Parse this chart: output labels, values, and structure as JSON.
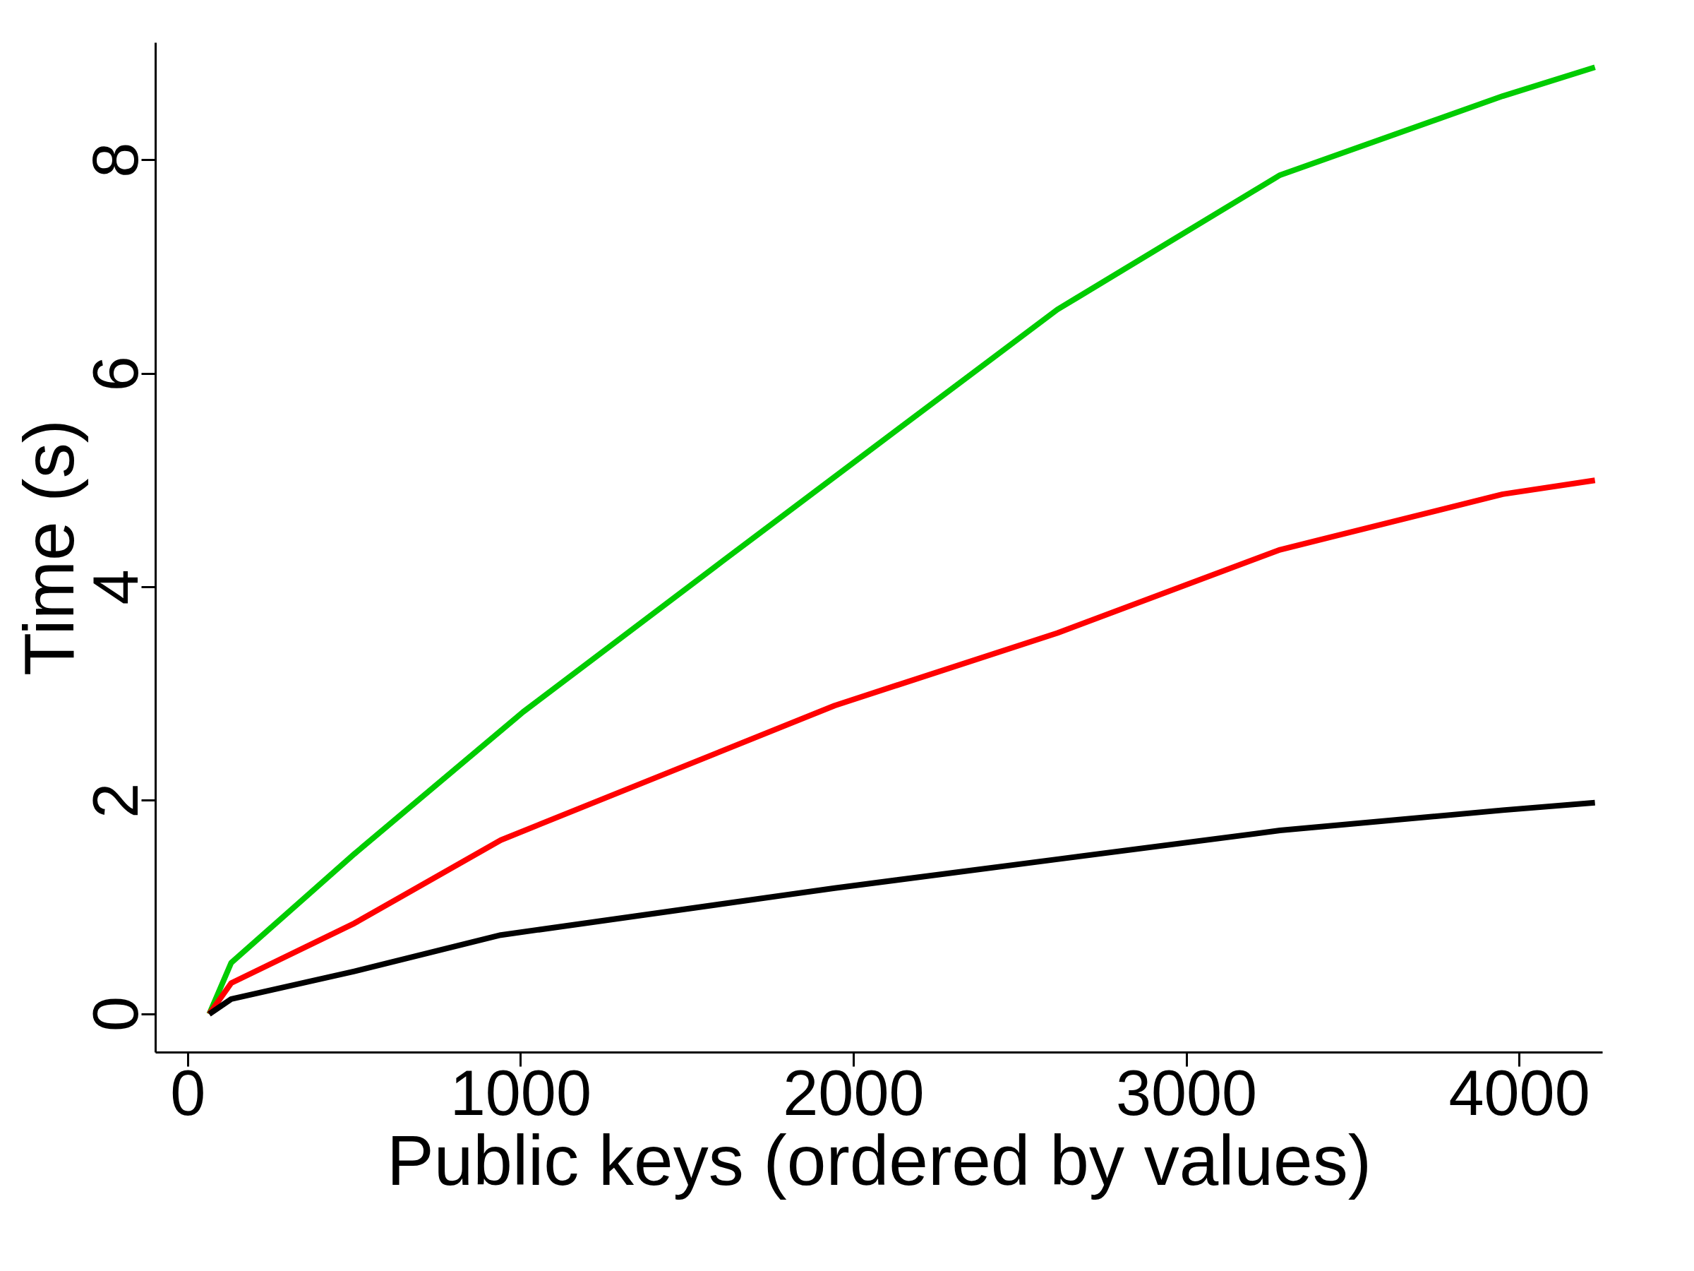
{
  "chart_data": {
    "type": "line",
    "xlabel": "Public keys (ordered by values)",
    "ylabel": "Time (s)",
    "xlim": [
      -97,
      4250
    ],
    "ylim": [
      -0.36,
      9.1
    ],
    "xticks": [
      0,
      1000,
      2000,
      3000,
      4000
    ],
    "yticks": [
      0,
      2,
      4,
      6,
      8
    ],
    "grid": false,
    "marker": "none",
    "line_style": "solid",
    "series": [
      {
        "color": "#00cc00",
        "x": [
          64,
          130,
          500,
          1007,
          1609,
          2010,
          2612,
          3281,
          3950,
          4227
        ],
        "values": [
          0,
          0.48,
          1.5,
          2.83,
          4.25,
          5.19,
          6.6,
          7.86,
          8.6,
          8.87
        ]
      },
      {
        "color": "#ff0000",
        "x": [
          64,
          130,
          500,
          940,
          1943,
          2612,
          3281,
          3950,
          4227
        ],
        "values": [
          0,
          0.29,
          0.85,
          1.63,
          2.89,
          3.57,
          4.35,
          4.87,
          5.0
        ]
      },
      {
        "color": "#000000",
        "x": [
          64,
          130,
          500,
          940,
          1943,
          2612,
          3281,
          3950,
          4227
        ],
        "values": [
          0,
          0.14,
          0.4,
          0.74,
          1.18,
          1.45,
          1.72,
          1.91,
          1.98
        ]
      }
    ]
  }
}
